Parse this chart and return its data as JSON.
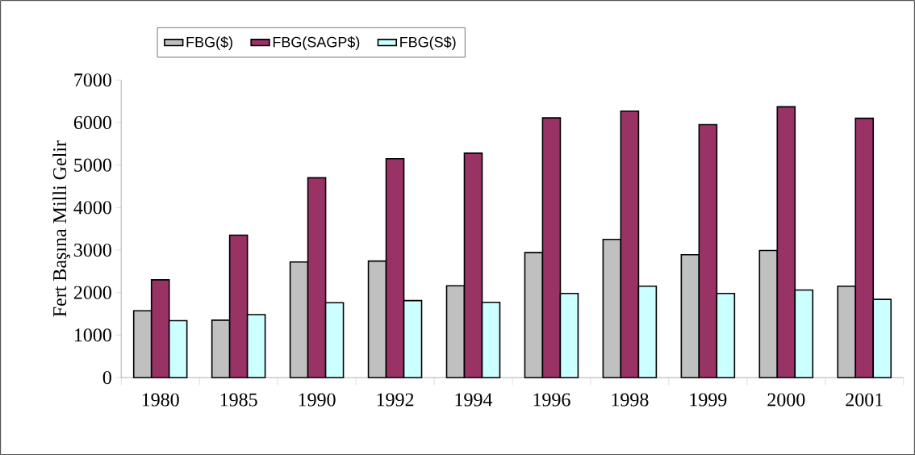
{
  "chart_data": {
    "type": "bar",
    "ylabel": "Fert Başına Milli Gelir",
    "categories": [
      "1980",
      "1985",
      "1990",
      "1992",
      "1994",
      "1996",
      "1998",
      "1999",
      "2000",
      "2001"
    ],
    "series": [
      {
        "name": "FBG($)",
        "color": "#c0c0c0",
        "values": [
          1570,
          1350,
          2720,
          2740,
          2160,
          2940,
          3250,
          2890,
          2990,
          2150
        ]
      },
      {
        "name": "FBG(SAGP$)",
        "color": "#993366",
        "values": [
          2300,
          3350,
          4700,
          5150,
          5280,
          6110,
          6270,
          5950,
          6370,
          6100
        ]
      },
      {
        "name": "FBG(S$)",
        "color": "#ccffff",
        "values": [
          1340,
          1480,
          1760,
          1810,
          1770,
          1980,
          2150,
          1980,
          2060,
          1840
        ]
      }
    ],
    "ylim": [
      0,
      7000
    ],
    "yticks": [
      0,
      1000,
      2000,
      3000,
      4000,
      5000,
      6000,
      7000
    ],
    "grid": false,
    "legend": "top"
  }
}
